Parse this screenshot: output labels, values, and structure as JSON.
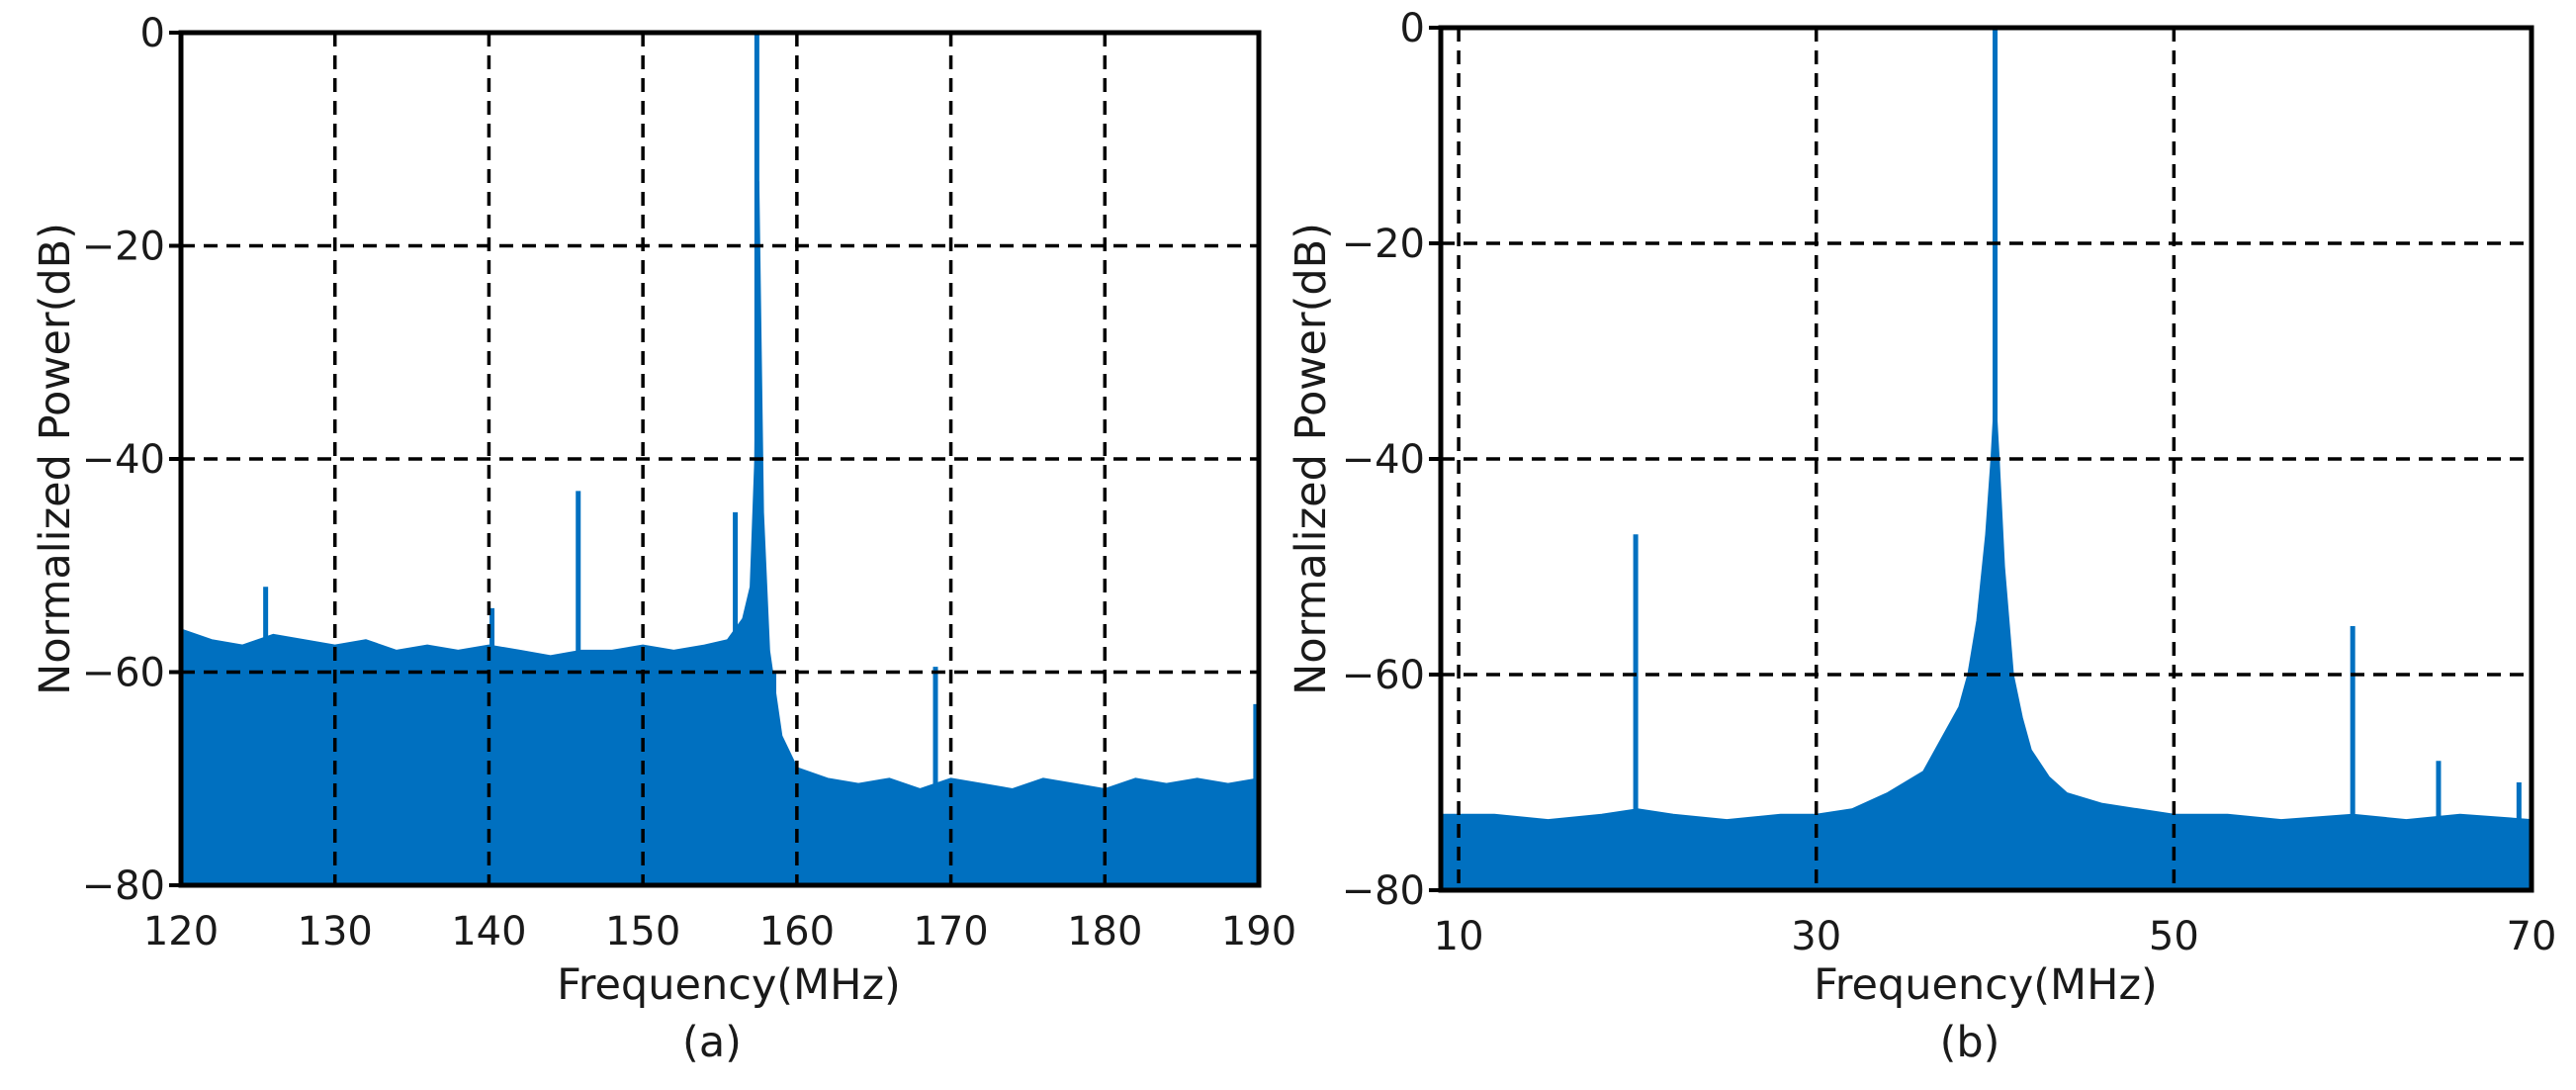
{
  "chart_data": [
    {
      "type": "area",
      "title": "",
      "caption": "(a)",
      "xlabel": "Frequency(MHz)",
      "ylabel": "Normalized Power(dB)",
      "xlim": [
        120,
        190
      ],
      "ylim": [
        -80,
        0
      ],
      "xticks": [
        120,
        130,
        140,
        150,
        160,
        170,
        180,
        190
      ],
      "xtick_labels": [
        "120",
        "130",
        "140",
        "150",
        "160",
        "170",
        "180",
        "190"
      ],
      "yticks": [
        0,
        -20,
        -40,
        -60,
        -80
      ],
      "ytick_labels": [
        "0",
        "−20",
        "−40",
        "−60",
        "−80"
      ],
      "grid": true,
      "series": [
        {
          "name": "spectrum",
          "color": "#0070c0",
          "x": [
            120,
            122,
            124,
            126,
            128,
            130,
            132,
            134,
            136,
            138,
            140,
            142,
            144,
            146,
            148,
            150,
            152,
            154,
            155.5,
            156.5,
            157.0,
            157.3,
            157.5,
            157.8,
            158.2,
            159,
            160,
            162,
            164,
            166,
            168,
            170,
            172,
            174,
            176,
            178,
            180,
            182,
            184,
            186,
            188,
            190
          ],
          "y": [
            -56,
            -57,
            -57.5,
            -56.5,
            -57,
            -57.5,
            -57,
            -58,
            -57.5,
            -58,
            -57.5,
            -58,
            -58.5,
            -58,
            -58,
            -57.5,
            -58,
            -57.5,
            -57,
            -55,
            -52,
            -40,
            -14,
            -45,
            -58,
            -66,
            -69,
            -70,
            -70.5,
            -70,
            -71,
            -70,
            -70.5,
            -71,
            -70,
            -70.5,
            -71,
            -70,
            -70.5,
            -70,
            -70.5,
            -70
          ],
          "peaks": [
            {
              "x": 125.5,
              "y": -52
            },
            {
              "x": 140.2,
              "y": -54
            },
            {
              "x": 145.8,
              "y": -43
            },
            {
              "x": 156.0,
              "y": -45
            },
            {
              "x": 157.4,
              "y": 0
            },
            {
              "x": 158.5,
              "y": -60
            },
            {
              "x": 169.0,
              "y": -59.5
            },
            {
              "x": 189.8,
              "y": -63
            }
          ]
        }
      ]
    },
    {
      "type": "area",
      "title": "",
      "caption": "(b)",
      "xlabel": "Frequency(MHz)",
      "ylabel": "Normalized Power(dB)",
      "xlim": [
        9,
        70
      ],
      "ylim": [
        -80,
        0
      ],
      "xticks": [
        10,
        30,
        50,
        70
      ],
      "xtick_labels": [
        "10",
        "30",
        "50",
        "70"
      ],
      "yticks": [
        0,
        -20,
        -40,
        -60,
        -80
      ],
      "ytick_labels": [
        "0",
        "−20",
        "−40",
        "−60",
        "−80"
      ],
      "grid": true,
      "series": [
        {
          "name": "spectrum",
          "color": "#0070c0",
          "x": [
            9,
            12,
            15,
            18,
            20,
            22,
            25,
            28,
            30,
            32,
            34,
            36,
            37,
            38,
            38.5,
            39,
            39.5,
            39.8,
            40,
            40.2,
            40.5,
            41,
            41.5,
            42,
            43,
            44,
            46,
            48,
            50,
            53,
            56,
            60,
            63,
            66,
            70
          ],
          "y": [
            -73,
            -73,
            -73.5,
            -73,
            -72.5,
            -73,
            -73.5,
            -73,
            -73,
            -72.5,
            -71,
            -69,
            -66,
            -63,
            -60,
            -55,
            -47,
            -40,
            -34,
            -40,
            -50,
            -60,
            -64,
            -67,
            -69.5,
            -71,
            -72,
            -72.5,
            -73,
            -73,
            -73.5,
            -73,
            -73.5,
            -73,
            -73.5
          ],
          "peaks": [
            {
              "x": 19.9,
              "y": -47
            },
            {
              "x": 40.0,
              "y": 0
            },
            {
              "x": 60.0,
              "y": -55.5
            },
            {
              "x": 64.8,
              "y": -68
            },
            {
              "x": 69.3,
              "y": -70
            }
          ]
        }
      ]
    }
  ]
}
